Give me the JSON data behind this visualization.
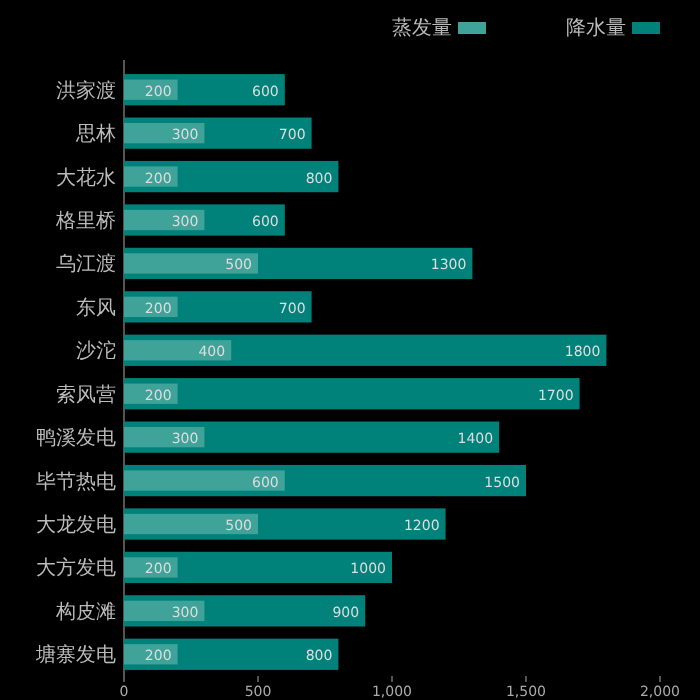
{
  "chart_data": {
    "type": "bar",
    "orientation": "horizontal",
    "categories": [
      "洪家渡",
      "思林",
      "大花水",
      "格里桥",
      "乌江渡",
      "东风",
      "沙沱",
      "索风营",
      "鸭溪发电",
      "毕节热电",
      "大龙发电",
      "大方发电",
      "构皮滩",
      "塘寨发电"
    ],
    "series": [
      {
        "name": "降水量",
        "color": "#00827a",
        "values": [
          600,
          700,
          800,
          600,
          1300,
          700,
          1800,
          1700,
          1400,
          1500,
          1200,
          1000,
          900,
          800
        ]
      },
      {
        "name": "蒸发量",
        "color": "#3fa39a",
        "values": [
          200,
          300,
          200,
          300,
          500,
          200,
          400,
          200,
          300,
          600,
          500,
          200,
          300,
          200
        ]
      }
    ],
    "xlim": [
      0,
      2000
    ],
    "xticks": [
      0,
      500,
      {
        "value": 1000,
        "label": "1,000"
      },
      {
        "value": 1500,
        "label": "1,500"
      },
      {
        "value": 2000,
        "label": "2,000"
      }
    ],
    "data_labels": true,
    "legend": "top right",
    "grid": false
  }
}
